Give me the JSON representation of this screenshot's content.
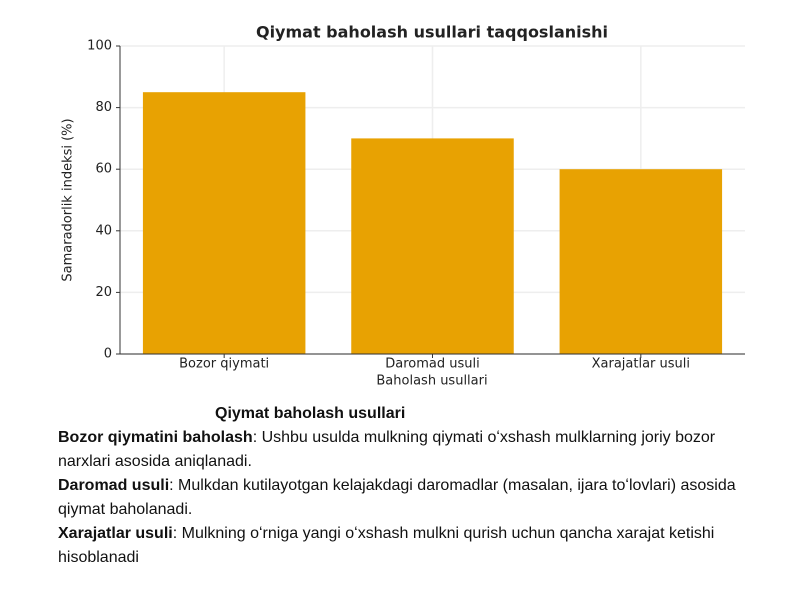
{
  "chart_data": {
    "type": "bar",
    "title": "Qiymat baholash usullari taqqoslanishi",
    "x_label": "Baholash usullari",
    "y_label": "Samaradorlik indeksi (%)",
    "categories": [
      "Bozor qiymati",
      "Daromad usuli",
      "Xarajatlar usuli"
    ],
    "values": [
      85,
      70,
      60
    ],
    "color": "#e8a202",
    "ylim": [
      0,
      100
    ],
    "yticks": [
      0,
      20,
      40,
      60,
      80,
      100
    ],
    "grid": true
  },
  "caption": {
    "heading": "Qiymat baholash usullari",
    "items": [
      {
        "term": "Bozor qiymatini baholash",
        "text": ": Ushbu usulda mulkning qiymati oʻxshash mulklarning joriy bozor narxlari asosida aniqlanadi."
      },
      {
        "term": "Daromad usuli",
        "text": ": Mulkdan kutilayotgan kelajakdagi daromadlar (masalan, ijara toʻlovlari) asosida qiymat baholanadi."
      },
      {
        "term": "Xarajatlar usuli",
        "text": ": Mulkning oʻrniga yangi oʻxshash mulkni qurish uchun qancha xarajat ketishi hisoblanadi"
      }
    ]
  }
}
